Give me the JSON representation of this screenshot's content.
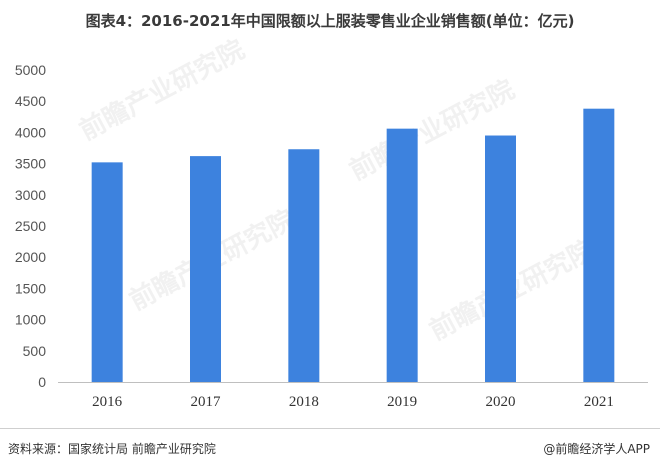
{
  "title": "图表4：2016-2021年中国限额以上服装零售业企业销售额(单位：亿元)",
  "source": "资料来源：国家统计局 前瞻产业研究院",
  "brand": "@前瞻经济学人APP",
  "watermark": "前瞻产业研究院",
  "colors": {
    "bar": "#3d82de"
  },
  "chart_data": {
    "type": "bar",
    "title": "图表4：2016-2021年中国限额以上服装零售业企业销售额(单位：亿元)",
    "categories": [
      "2016",
      "2017",
      "2018",
      "2019",
      "2020",
      "2021"
    ],
    "values": [
      3520,
      3620,
      3730,
      4060,
      3950,
      4380
    ],
    "ylim": [
      0,
      5000
    ],
    "yticks": [
      0,
      500,
      1000,
      1500,
      2000,
      2500,
      3000,
      3500,
      4000,
      4500,
      5000
    ],
    "grid": false,
    "legend": "none"
  }
}
